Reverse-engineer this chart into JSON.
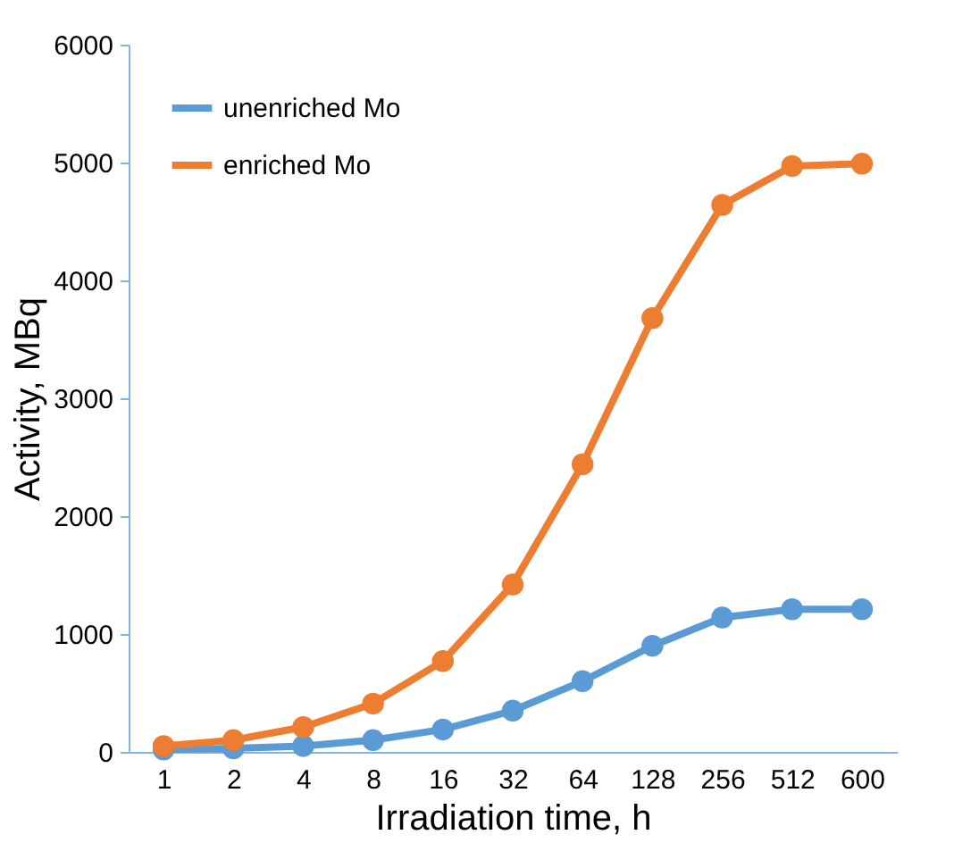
{
  "chart_data": {
    "type": "line",
    "xlabel": "Irradiation time, h",
    "ylabel": "Activity, MBq",
    "categories": [
      "1",
      "2",
      "4",
      "8",
      "16",
      "32",
      "64",
      "128",
      "256",
      "512",
      "600"
    ],
    "series": [
      {
        "name": "unenriched Mo",
        "color": "#5b9bd5",
        "values": [
          20,
          30,
          50,
          100,
          190,
          350,
          600,
          900,
          1140,
          1210,
          1210
        ]
      },
      {
        "name": "enriched Mo",
        "color": "#ed7d31",
        "values": [
          50,
          100,
          210,
          410,
          770,
          1420,
          2440,
          3680,
          4640,
          4970,
          4990
        ]
      }
    ],
    "ylim": [
      0,
      6000
    ],
    "yticks": [
      0,
      1000,
      2000,
      3000,
      4000,
      5000,
      6000
    ],
    "grid": false,
    "legend": "top left",
    "marker": "circle",
    "line_style": "solid"
  }
}
